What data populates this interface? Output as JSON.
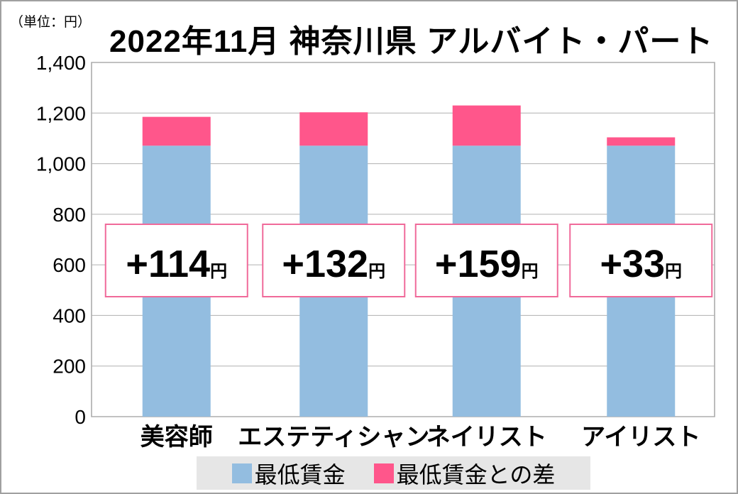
{
  "unit_label": "（単位：円）",
  "chart_data": {
    "type": "bar",
    "stacked": true,
    "title": "2022年11月 神奈川県 アルバイト・パート",
    "categories": [
      "美容師",
      "エステティシャン",
      "ネイリスト",
      "アイリスト"
    ],
    "series": [
      {
        "name": "最低賃金",
        "values": [
          1071,
          1071,
          1071,
          1071
        ],
        "color": "#93bde0"
      },
      {
        "name": "最低賃金との差",
        "values": [
          114,
          132,
          159,
          33
        ],
        "color": "#ff568b"
      }
    ],
    "annotations": [
      "+114円",
      "+132円",
      "+159円",
      "+33円"
    ],
    "ylim": [
      0,
      1400
    ],
    "yticks": [
      "0",
      "200",
      "400",
      "600",
      "800",
      "1,000",
      "1,200",
      "1,400"
    ],
    "grid": true,
    "legend": "bottom"
  }
}
